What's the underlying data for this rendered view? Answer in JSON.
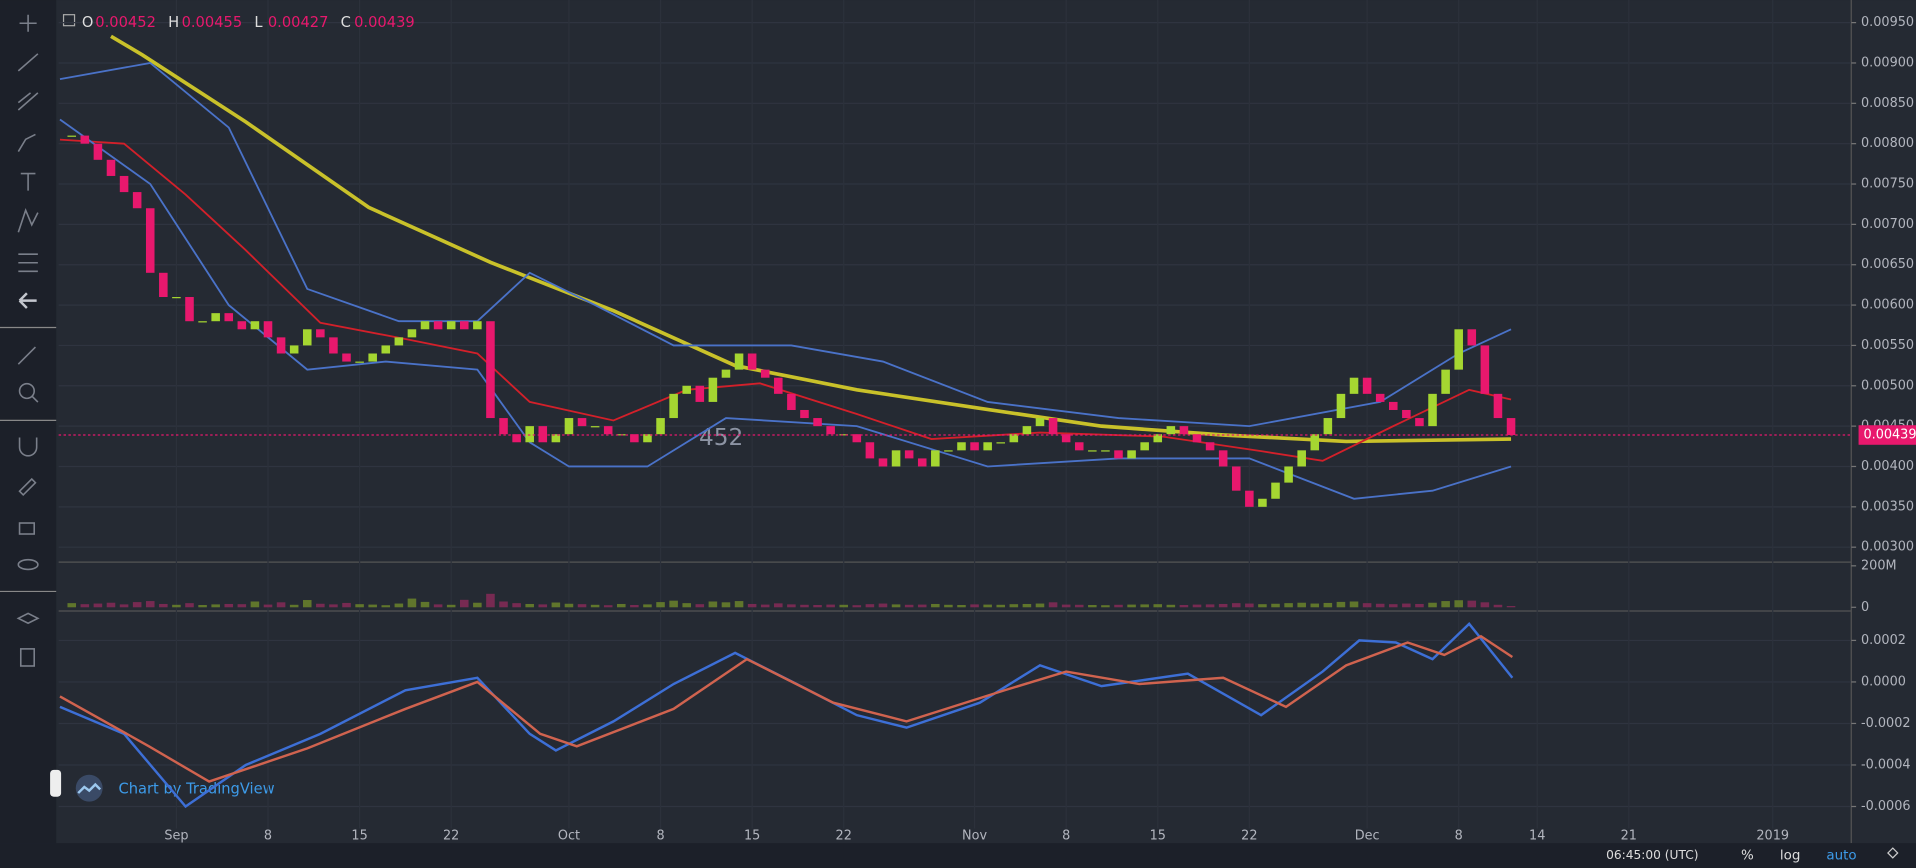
{
  "chart_data": {
    "type": "candlestick",
    "legend": [
      {
        "key": "O",
        "value": "0.00452"
      },
      {
        "key": "H",
        "value": "0.00455"
      },
      {
        "key": "L",
        "value": "0.00427"
      },
      {
        "key": "C",
        "value": "0.00439"
      }
    ],
    "annotation": "452",
    "watermark": "Chart by TradingView",
    "close": [
      0.0081,
      0.008,
      0.0078,
      0.0076,
      0.0074,
      0.0072,
      0.0064,
      0.0061,
      0.0061,
      0.0058,
      0.0058,
      0.0059,
      0.0058,
      0.0057,
      0.0058,
      0.0056,
      0.0054,
      0.0055,
      0.0057,
      0.0056,
      0.0054,
      0.0053,
      0.0053,
      0.0054,
      0.0055,
      0.0056,
      0.0057,
      0.0058,
      0.0057,
      0.0058,
      0.0057,
      0.0058,
      0.0046,
      0.0044,
      0.0043,
      0.0045,
      0.0043,
      0.0044,
      0.0046,
      0.0045,
      0.0045,
      0.0044,
      0.0044,
      0.0043,
      0.0044,
      0.0046,
      0.0049,
      0.005,
      0.0048,
      0.0051,
      0.0052,
      0.0054,
      0.0052,
      0.0051,
      0.0049,
      0.0047,
      0.0046,
      0.0045,
      0.0044,
      0.0044,
      0.0043,
      0.0041,
      0.004,
      0.0042,
      0.0041,
      0.004,
      0.0042,
      0.0042,
      0.0043,
      0.0042,
      0.0043,
      0.0043,
      0.0044,
      0.0045,
      0.0046,
      0.0044,
      0.0043,
      0.0042,
      0.0042,
      0.0042,
      0.0041,
      0.0042,
      0.0043,
      0.0044,
      0.0045,
      0.0044,
      0.0043,
      0.0042,
      0.004,
      0.0037,
      0.0035,
      0.0036,
      0.0038,
      0.004,
      0.0042,
      0.0044,
      0.0046,
      0.0049,
      0.0051,
      0.0049,
      0.0048,
      0.0047,
      0.0046,
      0.0045,
      0.0049,
      0.0052,
      0.0057,
      0.0055,
      0.0049,
      0.0046,
      0.00439
    ],
    "up_color": "#a5d631",
    "down_color": "#e8186d",
    "xlim": [
      -1,
      136
    ],
    "xticks": [
      {
        "value": 8,
        "label": "Sep"
      },
      {
        "value": 15,
        "label": "8"
      },
      {
        "value": 22,
        "label": "15"
      },
      {
        "value": 29,
        "label": "22"
      },
      {
        "value": 38,
        "label": "Oct"
      },
      {
        "value": 45,
        "label": "8"
      },
      {
        "value": 52,
        "label": "15"
      },
      {
        "value": 59,
        "label": "22"
      },
      {
        "value": 69,
        "label": "Nov"
      },
      {
        "value": 76,
        "label": "8"
      },
      {
        "value": 83,
        "label": "15"
      },
      {
        "value": 90,
        "label": "22"
      },
      {
        "value": 99,
        "label": "Dec"
      },
      {
        "value": 106,
        "label": "8"
      },
      {
        "value": 112,
        "label": "14"
      },
      {
        "value": 119,
        "label": "21"
      },
      {
        "value": 130,
        "label": "2019"
      }
    ],
    "ylim": [
      0.00283,
      0.00978
    ],
    "yticks": [
      {
        "value": 0.003,
        "label": "0.00300"
      },
      {
        "value": 0.0035,
        "label": "0.00350"
      },
      {
        "value": 0.004,
        "label": "0.00400"
      },
      {
        "value": 0.0045,
        "label": "0.00450"
      },
      {
        "value": 0.005,
        "label": "0.00500"
      },
      {
        "value": 0.0055,
        "label": "0.00550"
      },
      {
        "value": 0.006,
        "label": "0.00600"
      },
      {
        "value": 0.0065,
        "label": "0.00650"
      },
      {
        "value": 0.007,
        "label": "0.00700"
      },
      {
        "value": 0.0075,
        "label": "0.00750"
      },
      {
        "value": 0.008,
        "label": "0.00800"
      },
      {
        "value": 0.0085,
        "label": "0.00850"
      },
      {
        "value": 0.009,
        "label": "0.00900"
      },
      {
        "value": 0.0095,
        "label": "0.00950"
      }
    ],
    "last_price": {
      "value": 0.00439,
      "label": "0.00439"
    },
    "series": [
      {
        "color": "#c9c12a",
        "x": [
          3,
          5.4,
          13.3,
          22.7,
          32,
          41.4,
          50.7,
          60,
          69.4,
          78.7,
          88,
          97.4,
          110
        ],
        "values": [
          0.00933,
          0.0091,
          0.00827,
          0.00721,
          0.00653,
          0.00593,
          0.00525,
          0.00495,
          0.00472,
          0.0045,
          0.00439,
          0.00431,
          0.00434
        ]
      },
      {
        "color": "#d3202a",
        "x": [
          -0.9,
          4,
          8.7,
          13.3,
          19,
          25.5,
          31,
          35,
          41.4,
          47,
          52.6,
          60,
          65.7,
          74,
          83.4,
          90.9,
          95.6,
          101,
          106.8,
          110
        ],
        "values": [
          0.00805,
          0.008,
          0.00737,
          0.00668,
          0.00578,
          0.00558,
          0.0054,
          0.0048,
          0.00457,
          0.00495,
          0.00503,
          0.00465,
          0.00434,
          0.00442,
          0.00437,
          0.00419,
          0.00407,
          0.0045,
          0.00495,
          0.00483
        ]
      },
      {
        "color": "#4a72c8",
        "x": [
          -0.9,
          6,
          12,
          18,
          25,
          31,
          35,
          40,
          46,
          55,
          62,
          70,
          80,
          90,
          100,
          106,
          110
        ],
        "values": [
          0.0088,
          0.009,
          0.0082,
          0.0062,
          0.0058,
          0.0058,
          0.0064,
          0.006,
          0.0055,
          0.0055,
          0.0053,
          0.0048,
          0.0046,
          0.0045,
          0.0048,
          0.0054,
          0.0057
        ]
      },
      {
        "color": "#4a72c8",
        "x": [
          -0.9,
          6,
          12,
          18,
          24,
          31,
          35,
          38,
          44,
          50,
          60,
          70,
          80,
          90,
          98,
          104,
          110
        ],
        "values": [
          0.0083,
          0.0075,
          0.006,
          0.0052,
          0.0053,
          0.0052,
          0.0043,
          0.004,
          0.004,
          0.0046,
          0.0045,
          0.004,
          0.0041,
          0.0041,
          0.0036,
          0.0037,
          0.004
        ]
      }
    ],
    "volume": {
      "values": [
        20000000.0,
        15000000.0,
        18000000.0,
        22000000.0,
        14000000.0,
        25000000.0,
        30000000.0,
        16000000.0,
        12000000.0,
        20000000.0,
        11000000.0,
        14000000.0,
        16000000.0,
        15000000.0,
        28000000.0,
        13000000.0,
        24000000.0,
        12000000.0,
        35000000.0,
        17000000.0,
        14000000.0,
        21000000.0,
        15000000.0,
        13000000.0,
        10000000.0,
        18000000.0,
        42000000.0,
        26000000.0,
        14000000.0,
        12000000.0,
        36000000.0,
        22000000.0,
        65000000.0,
        28000000.0,
        20000000.0,
        16000000.0,
        14000000.0,
        23000000.0,
        17000000.0,
        15000000.0,
        12000000.0,
        10000000.0,
        16000000.0,
        11000000.0,
        14000000.0,
        25000000.0,
        32000000.0,
        20000000.0,
        15000000.0,
        28000000.0,
        24000000.0,
        30000000.0,
        16000000.0,
        13000000.0,
        19000000.0,
        14000000.0,
        12000000.0,
        11000000.0,
        13000000.0,
        12000000.0,
        10000000.0,
        15000000.0,
        18000000.0,
        14000000.0,
        12000000.0,
        13000000.0,
        16000000.0,
        12000000.0,
        11000000.0,
        14000000.0,
        13000000.0,
        12000000.0,
        15000000.0,
        16000000.0,
        18000000.0,
        24000000.0,
        13000000.0,
        12000000.0,
        11000000.0,
        10000000.0,
        12000000.0,
        13000000.0,
        14000000.0,
        15000000.0,
        12000000.0,
        11000000.0,
        13000000.0,
        14000000.0,
        16000000.0,
        20000000.0,
        18000000.0,
        15000000.0,
        17000000.0,
        20000000.0,
        22000000.0,
        18000000.0,
        21000000.0,
        26000000.0,
        28000000.0,
        20000000.0,
        17000000.0,
        15000000.0,
        18000000.0,
        16000000.0,
        22000000.0,
        30000000.0,
        34000000.0,
        32000000.0,
        24000000.0,
        12000000.0,
        6000000.0
      ],
      "ylim": [
        -12000000,
        212000000
      ],
      "yticks": [
        {
          "value": 200000000,
          "label": "200M"
        },
        0
      ]
    },
    "macd": {
      "ylim": [
        -0.000706,
        0.00033
      ],
      "yticks": [
        {
          "value": 0.0002,
          "label": "0.0002"
        },
        {
          "value": 0,
          "label": "0.0000"
        },
        {
          "value": -0.0002,
          "label": "-0.0002"
        },
        {
          "value": -0.0004,
          "label": "-0.0004"
        },
        {
          "value": -0.0006,
          "label": "-0.0006"
        }
      ],
      "series": [
        {
          "color": "#3d6fd6",
          "x": [
            -0.9,
            4,
            8.7,
            13.3,
            19,
            25.5,
            31,
            35,
            37,
            41.4,
            46,
            50.7,
            55.4,
            60,
            63.8,
            69.4,
            74,
            78.7,
            85.3,
            90.9,
            95.6,
            98.4,
            101.2,
            104,
            106.8,
            110.1
          ],
          "values": [
            -0.00012,
            -0.00025,
            -0.0006,
            -0.0004,
            -0.00025,
            -4e-05,
            2e-05,
            -0.00025,
            -0.00033,
            -0.00019,
            -1e-05,
            0.00014,
            -1e-05,
            -0.00016,
            -0.00022,
            -0.0001,
            8e-05,
            -2e-05,
            4e-05,
            -0.00016,
            5e-05,
            0.0002,
            0.00019,
            0.00011,
            0.00028,
            2e-05
          ]
        },
        {
          "color": "#d0634f",
          "x": [
            -0.9,
            5.9,
            10.5,
            18,
            25.5,
            31,
            35.8,
            38.6,
            46,
            51.6,
            58.2,
            63.8,
            71.3,
            76,
            81.6,
            88,
            92.8,
            97.4,
            102.1,
            104.9,
            107.7,
            110.1
          ],
          "values": [
            -7e-05,
            -0.00031,
            -0.00048,
            -0.00032,
            -0.00013,
            0,
            -0.00025,
            -0.00031,
            -0.00013,
            0.00011,
            -0.0001,
            -0.00019,
            -4e-05,
            5e-05,
            -1e-05,
            2e-05,
            -0.00012,
            8e-05,
            0.00019,
            0.00013,
            0.00022,
            0.00012
          ]
        }
      ]
    },
    "footer": {
      "time": "06:45:00 (UTC)",
      "percent": "%",
      "log": "log",
      "auto": "auto"
    }
  }
}
